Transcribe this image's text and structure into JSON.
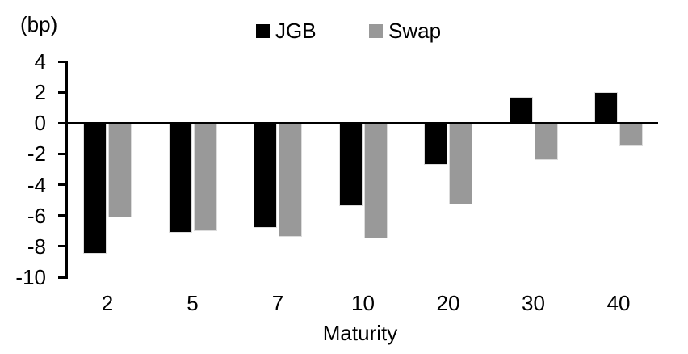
{
  "chart_data": {
    "type": "bar",
    "title": "",
    "unit_label": "(bp)",
    "xlabel": "Maturity",
    "categories": [
      "2",
      "5",
      "7",
      "10",
      "20",
      "30",
      "40"
    ],
    "series": [
      {
        "name": "JGB",
        "color": "#000000",
        "values": [
          -8.5,
          -7.1,
          -6.8,
          -5.4,
          -2.7,
          1.7,
          2.0
        ]
      },
      {
        "name": "Swap",
        "color": "#999999",
        "values": [
          -6.1,
          -7.0,
          -7.4,
          -7.5,
          -5.3,
          -2.4,
          -1.5
        ]
      }
    ],
    "ylim": [
      -10,
      4
    ],
    "yticks": [
      "4",
      "2",
      "0",
      "-2",
      "-4",
      "-6",
      "-8",
      "-10"
    ],
    "grid": false,
    "legend_position": "top-center"
  },
  "colors": {
    "background": "#ffffff",
    "axis": "#000000",
    "bar_border": "#dcdcdc",
    "text": "#000000"
  }
}
